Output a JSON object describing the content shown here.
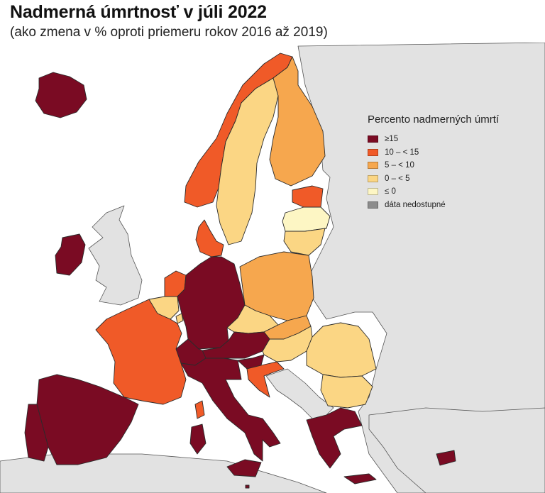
{
  "header": {
    "title": "Nadmerná úmrtnosť v júli 2022",
    "subtitle": "(ako zmena v % oproti priemeru rokov 2016 až 2019)"
  },
  "colors": {
    "sea": "#ffffff",
    "land_nodata": "#e2e2e2",
    "border": "#333333",
    "cat_15_plus": "#7a0b23",
    "cat_10_15": "#f05a28",
    "cat_5_10": "#f6a74e",
    "cat_0_5": "#fbd684",
    "cat_le_0": "#fdf6c4",
    "cat_na": "#8c8c8c"
  },
  "legend": {
    "title": "Percento nadmerných úmrtí",
    "items": [
      {
        "label": "≥15",
        "color": "#7a0b23"
      },
      {
        "label": "10 – < 15",
        "color": "#f05a28"
      },
      {
        "label": "5 – < 10",
        "color": "#f6a74e"
      },
      {
        "label": "0 – < 5",
        "color": "#fbd684"
      },
      {
        "label": "≤ 0",
        "color": "#fdf6c4"
      },
      {
        "label": "dáta nedostupné",
        "color": "#8c8c8c"
      }
    ]
  },
  "regions": {
    "iceland": "≥15",
    "ireland": "≥15",
    "spain": "≥15",
    "portugal": "≥15",
    "germany": "≥15",
    "austria": "≥15",
    "slovenia": "≥15",
    "italy": "≥15",
    "switzerland": "≥15",
    "greece": "≥15",
    "cyprus": "≥15",
    "malta": "≥15",
    "norway": "10 – < 15",
    "france": "10 – < 15",
    "netherlands": "10 – < 15",
    "denmark": "10 – < 15",
    "estonia": "10 – < 15",
    "croatia": "10 – < 15",
    "finland": "5 – < 10",
    "poland": "5 – < 10",
    "slovakia": "5 – < 10",
    "sweden": "0 – < 5",
    "belgium": "0 – < 5",
    "czechia": "0 – < 5",
    "hungary": "0 – < 5",
    "romania": "0 – < 5",
    "bulgaria": "0 – < 5",
    "lithuania": "0 – < 5",
    "luxembourg": "0 – < 5",
    "latvia": "≤ 0"
  }
}
